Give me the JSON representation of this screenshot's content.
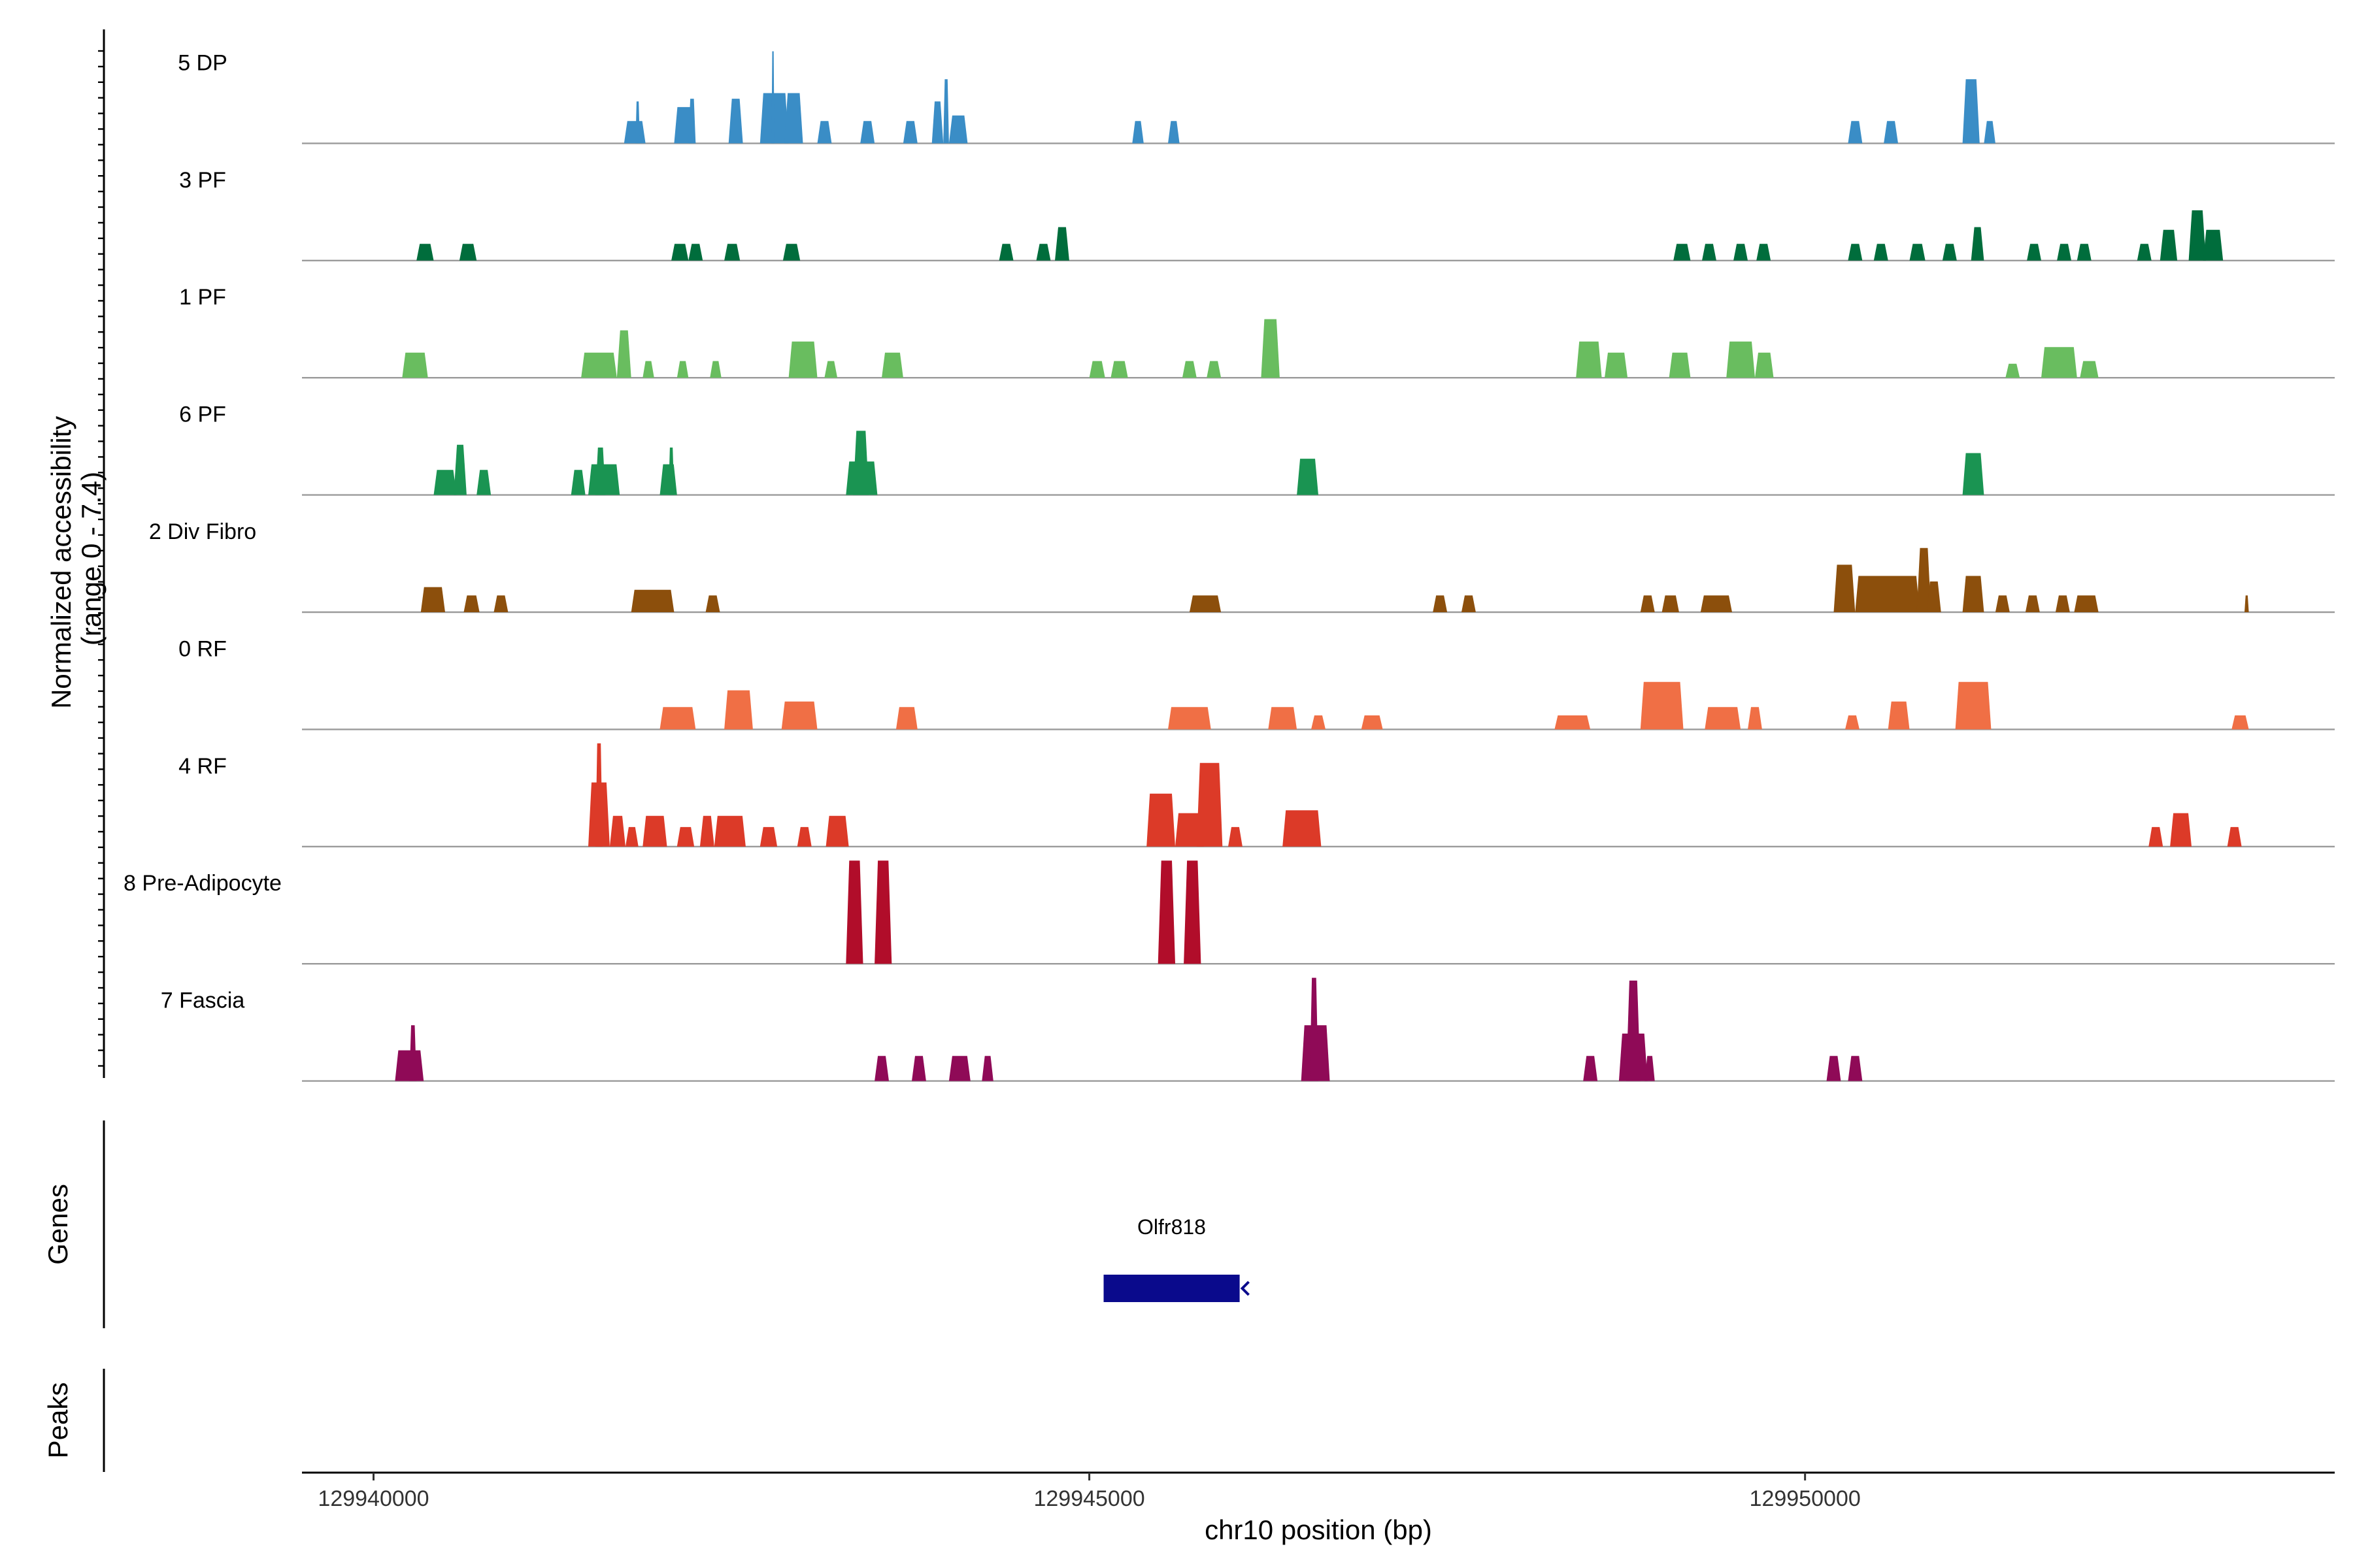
{
  "chart_data": {
    "type": "area",
    "title": "",
    "chromosome": "chr10",
    "xlabel": "chr10 position (bp)",
    "ylabel_line1": "Normalized accessibility",
    "ylabel_line2": "(range 0 - 7.4)",
    "y_range": [
      0,
      7.4
    ],
    "xlim": [
      129939500,
      129953700
    ],
    "x_ticks": [
      129940000,
      129945000,
      129950000
    ],
    "x_tick_labels": [
      "129940000",
      "129945000",
      "129950000"
    ],
    "panel_labels": {
      "genes": "Genes",
      "peaks": "Peaks"
    },
    "series": [
      {
        "name": "5 DP",
        "color": "#3a8dc6",
        "peaks": [
          [
            129941750,
            129941900,
            1.6
          ],
          [
            129941830,
            129941860,
            3.0
          ],
          [
            129942100,
            129942250,
            2.6
          ],
          [
            129942200,
            129942250,
            3.2
          ],
          [
            129942480,
            129942580,
            3.2
          ],
          [
            129942700,
            129942900,
            3.6
          ],
          [
            129942780,
            129942800,
            6.6
          ],
          [
            129942870,
            129943000,
            3.6
          ],
          [
            129943100,
            129943200,
            1.6
          ],
          [
            129943400,
            129943500,
            1.6
          ],
          [
            129943700,
            129943800,
            1.6
          ],
          [
            129943900,
            129943980,
            3.0
          ],
          [
            129943980,
            129944020,
            4.6
          ],
          [
            129944020,
            129944150,
            2.0
          ],
          [
            129945300,
            129945380,
            1.6
          ],
          [
            129945550,
            129945630,
            1.6
          ],
          [
            129950300,
            129950400,
            1.6
          ],
          [
            129950550,
            129950650,
            1.6
          ],
          [
            129951100,
            129951220,
            4.6
          ],
          [
            129951250,
            129951330,
            1.6
          ]
        ]
      },
      {
        "name": "3 PF",
        "color": "#006d3c",
        "peaks": [
          [
            129940300,
            129940420,
            1.2
          ],
          [
            129940600,
            129940720,
            1.2
          ],
          [
            129942080,
            129942200,
            1.2
          ],
          [
            129942200,
            129942300,
            1.2
          ],
          [
            129942450,
            129942560,
            1.2
          ],
          [
            129942860,
            129942980,
            1.2
          ],
          [
            129944370,
            129944470,
            1.2
          ],
          [
            129944630,
            129944730,
            1.2
          ],
          [
            129944760,
            129944860,
            2.4
          ],
          [
            129949080,
            129949200,
            1.2
          ],
          [
            129949280,
            129949380,
            1.2
          ],
          [
            129949500,
            129949600,
            1.2
          ],
          [
            129949660,
            129949760,
            1.2
          ],
          [
            129950300,
            129950400,
            1.2
          ],
          [
            129950480,
            129950580,
            1.2
          ],
          [
            129950730,
            129950840,
            1.2
          ],
          [
            129950960,
            129951060,
            1.2
          ],
          [
            129951160,
            129951250,
            2.4
          ],
          [
            129951550,
            129951650,
            1.2
          ],
          [
            129951760,
            129951860,
            1.2
          ],
          [
            129951900,
            129952000,
            1.2
          ],
          [
            129952320,
            129952420,
            1.2
          ],
          [
            129952480,
            129952600,
            2.2
          ],
          [
            129952680,
            129952800,
            3.6
          ],
          [
            129952780,
            129952920,
            2.2
          ]
        ]
      },
      {
        "name": "1 PF",
        "color": "#69bd5f",
        "peaks": [
          [
            129940200,
            129940380,
            1.8
          ],
          [
            129941450,
            129941700,
            1.8
          ],
          [
            129941700,
            129941800,
            3.4
          ],
          [
            129941880,
            129941960,
            1.2
          ],
          [
            129942120,
            129942200,
            1.2
          ],
          [
            129942350,
            129942430,
            1.2
          ],
          [
            129942900,
            129943100,
            2.6
          ],
          [
            129943150,
            129943240,
            1.2
          ],
          [
            129943550,
            129943700,
            1.8
          ],
          [
            129945000,
            129945110,
            1.2
          ],
          [
            129945150,
            129945270,
            1.2
          ],
          [
            129945650,
            129945750,
            1.2
          ],
          [
            129945820,
            129945920,
            1.2
          ],
          [
            129946200,
            129946330,
            4.2
          ],
          [
            129948400,
            129948580,
            2.6
          ],
          [
            129948600,
            129948760,
            1.8
          ],
          [
            129949050,
            129949200,
            1.8
          ],
          [
            129949450,
            129949650,
            2.6
          ],
          [
            129949650,
            129949780,
            1.8
          ],
          [
            129951400,
            129951500,
            1.0
          ],
          [
            129951650,
            129951900,
            2.2
          ],
          [
            129951920,
            129952050,
            1.2
          ]
        ]
      },
      {
        "name": "6 PF",
        "color": "#1a9452",
        "peaks": [
          [
            129940420,
            129940580,
            1.8
          ],
          [
            129940560,
            129940650,
            3.6
          ],
          [
            129940720,
            129940820,
            1.8
          ],
          [
            129941380,
            129941480,
            1.8
          ],
          [
            129941500,
            129941720,
            2.2
          ],
          [
            129941550,
            129941620,
            3.4
          ],
          [
            129942000,
            129942120,
            2.2
          ],
          [
            129942060,
            129942100,
            3.4
          ],
          [
            129943300,
            129943520,
            2.4
          ],
          [
            129943350,
            129943460,
            4.6
          ],
          [
            129946450,
            129946600,
            2.6
          ],
          [
            129951100,
            129951250,
            3.0
          ]
        ]
      },
      {
        "name": "2 Div Fibro",
        "color": "#8c4f0c",
        "peaks": [
          [
            129940330,
            129940500,
            1.8
          ],
          [
            129940630,
            129940740,
            1.2
          ],
          [
            129940840,
            129940940,
            1.2
          ],
          [
            129941800,
            129942100,
            1.6
          ],
          [
            129942320,
            129942420,
            1.2
          ],
          [
            129945700,
            129945920,
            1.2
          ],
          [
            129947400,
            129947500,
            1.2
          ],
          [
            129947600,
            129947700,
            1.2
          ],
          [
            129948850,
            129948950,
            1.2
          ],
          [
            129949000,
            129949120,
            1.2
          ],
          [
            129949270,
            129949490,
            1.2
          ],
          [
            129950200,
            129950350,
            3.4
          ],
          [
            129950350,
            129950800,
            2.6
          ],
          [
            129950780,
            129950880,
            4.6
          ],
          [
            129950850,
            129950950,
            2.2
          ],
          [
            129951100,
            129951250,
            2.6
          ],
          [
            129951330,
            129951430,
            1.2
          ],
          [
            129951540,
            129951640,
            1.2
          ],
          [
            129951750,
            129951850,
            1.2
          ],
          [
            129951880,
            129952050,
            1.2
          ],
          [
            129953070,
            129953100,
            1.2
          ]
        ]
      },
      {
        "name": "0 RF",
        "color": "#f06f45",
        "peaks": [
          [
            129942000,
            129942250,
            1.6
          ],
          [
            129942450,
            129942650,
            2.8
          ],
          [
            129942850,
            129943100,
            2.0
          ],
          [
            129943650,
            129943800,
            1.6
          ],
          [
            129945550,
            129945850,
            1.6
          ],
          [
            129946250,
            129946450,
            1.6
          ],
          [
            129946550,
            129946650,
            1.0
          ],
          [
            129946900,
            129947050,
            1.0
          ],
          [
            129948250,
            129948500,
            1.0
          ],
          [
            129948850,
            129949150,
            3.4
          ],
          [
            129949300,
            129949550,
            1.6
          ],
          [
            129949600,
            129949700,
            1.6
          ],
          [
            129950280,
            129950380,
            1.0
          ],
          [
            129950580,
            129950730,
            2.0
          ],
          [
            129951050,
            129951300,
            3.4
          ],
          [
            129952980,
            129953100,
            1.0
          ]
        ]
      },
      {
        "name": "4 RF",
        "color": "#dc3a28",
        "peaks": [
          [
            129941500,
            129941650,
            4.6
          ],
          [
            129941550,
            129941600,
            7.4
          ],
          [
            129941650,
            129941760,
            2.2
          ],
          [
            129941760,
            129941850,
            1.4
          ],
          [
            129941880,
            129942050,
            2.2
          ],
          [
            129942120,
            129942240,
            1.4
          ],
          [
            129942280,
            129942380,
            2.2
          ],
          [
            129942380,
            129942600,
            2.2
          ],
          [
            129942700,
            129942820,
            1.4
          ],
          [
            129942960,
            129943060,
            1.4
          ],
          [
            129943160,
            129943320,
            2.2
          ],
          [
            129945400,
            129945600,
            3.8
          ],
          [
            129945600,
            129945800,
            2.4
          ],
          [
            129945750,
            129945930,
            6.0
          ],
          [
            129945970,
            129946070,
            1.4
          ],
          [
            129946350,
            129946620,
            2.6
          ],
          [
            129952400,
            129952500,
            1.4
          ],
          [
            129952550,
            129952700,
            2.4
          ],
          [
            129952950,
            129953050,
            1.4
          ]
        ]
      },
      {
        "name": "8 Pre-Adipocyte",
        "color": "#b10d2a",
        "peaks": [
          [
            129943300,
            129943420,
            7.4
          ],
          [
            129943500,
            129943620,
            7.4
          ],
          [
            129945480,
            129945600,
            7.4
          ],
          [
            129945660,
            129945780,
            7.4
          ]
        ]
      },
      {
        "name": "7 Fascia",
        "color": "#8f0a57",
        "peaks": [
          [
            129940150,
            129940350,
            2.2
          ],
          [
            129940250,
            129940300,
            4.0
          ],
          [
            129943500,
            129943600,
            1.8
          ],
          [
            129943760,
            129943860,
            1.8
          ],
          [
            129944020,
            129944170,
            1.8
          ],
          [
            129944250,
            129944330,
            1.8
          ],
          [
            129946480,
            129946680,
            4.0
          ],
          [
            129946540,
            129946600,
            7.4
          ],
          [
            129948450,
            129948550,
            1.8
          ],
          [
            129948700,
            129948900,
            3.4
          ],
          [
            129948750,
            129948850,
            7.2
          ],
          [
            129948880,
            129948950,
            1.8
          ],
          [
            129950150,
            129950250,
            1.8
          ],
          [
            129950300,
            129950400,
            1.8
          ]
        ]
      }
    ],
    "genes": [
      {
        "name": "Olfr818",
        "start": 129945100,
        "end": 129946050,
        "strand": "-",
        "color": "#0a0a8c"
      }
    ]
  }
}
